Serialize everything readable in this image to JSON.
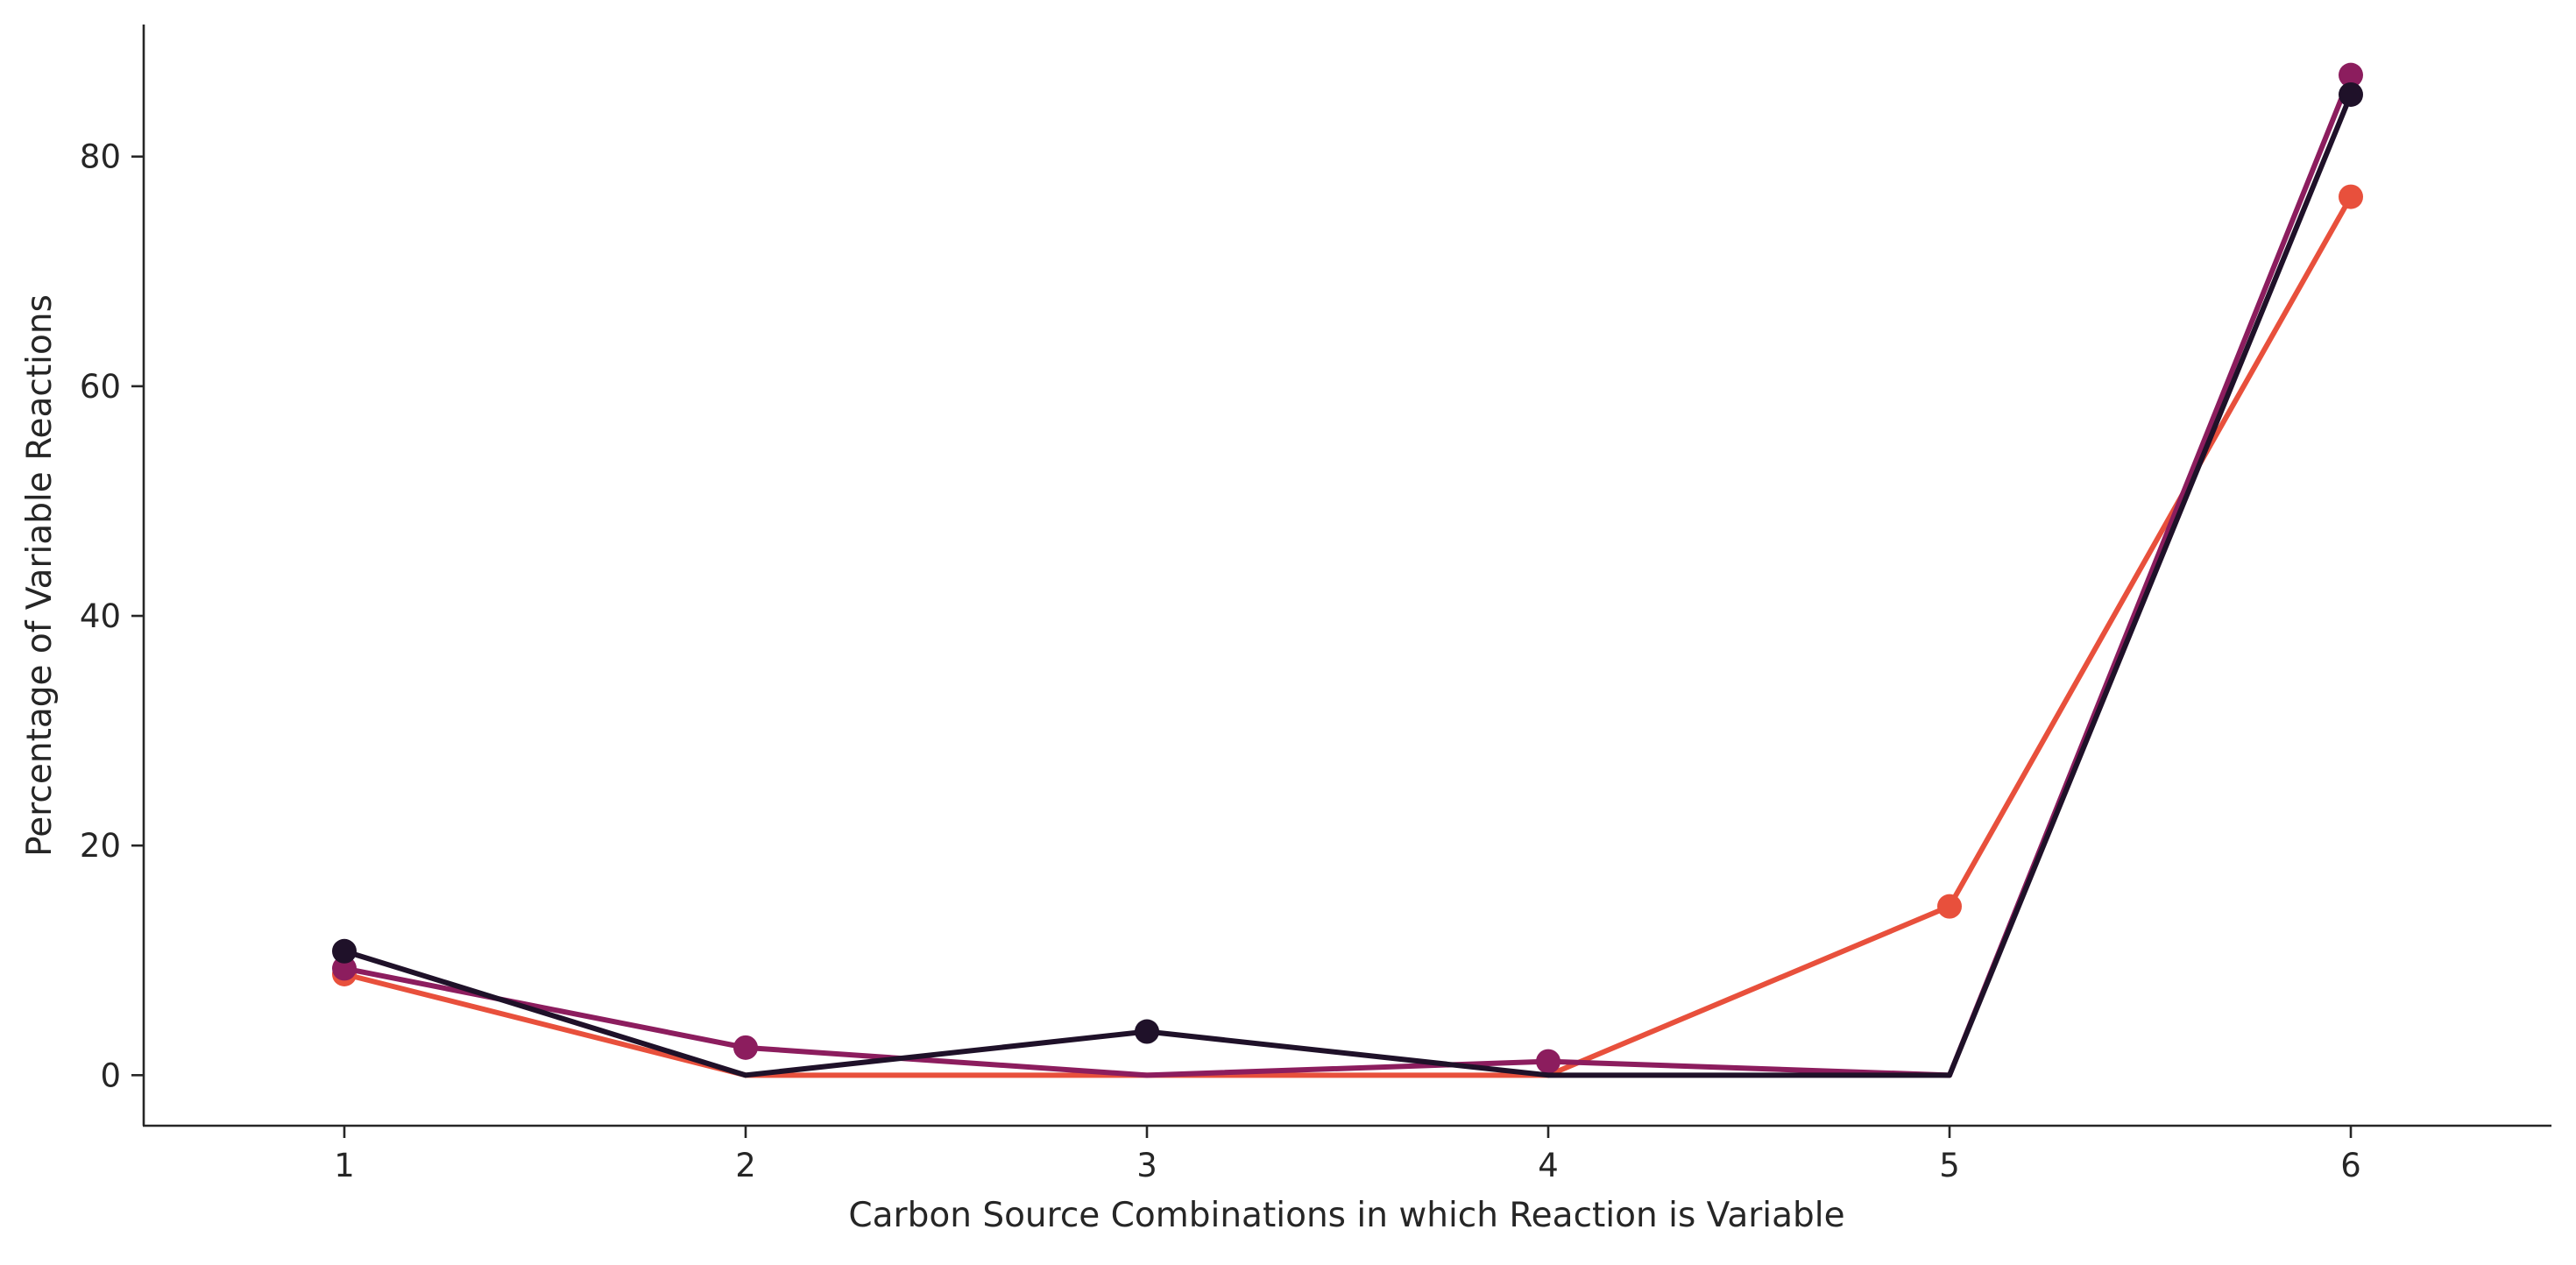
{
  "chart_data": {
    "type": "line",
    "title": "",
    "xlabel": "Carbon Source Combinations in which Reaction is Variable",
    "ylabel": "Percentage of Variable Reactions",
    "x": [
      1,
      2,
      3,
      4,
      5,
      6
    ],
    "xlim": [
      0.5,
      6.5
    ],
    "ylim": [
      -4.4,
      91.5
    ],
    "yticks": [
      0,
      20,
      40,
      60,
      80
    ],
    "grid": false,
    "legend": "none",
    "series": [
      {
        "color": "#e8503c",
        "values": [
          8.8,
          0,
          0,
          0,
          14.7,
          76.5
        ],
        "markers": [
          true,
          false,
          false,
          false,
          true,
          true
        ]
      },
      {
        "color": "#8c1d5e",
        "values": [
          9.3,
          2.4,
          0,
          1.2,
          0,
          87.1
        ],
        "markers": [
          true,
          true,
          false,
          true,
          false,
          true
        ]
      },
      {
        "color": "#1f1129",
        "values": [
          10.8,
          0,
          3.8,
          0,
          0,
          85.4
        ],
        "markers": [
          true,
          false,
          true,
          false,
          false,
          true
        ]
      }
    ]
  }
}
